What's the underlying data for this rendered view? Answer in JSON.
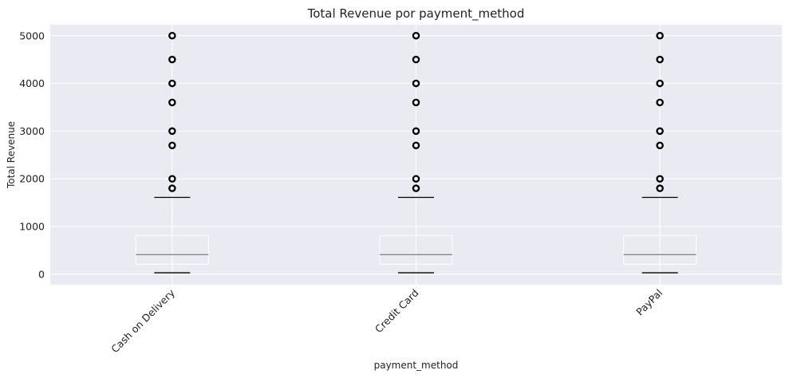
{
  "chart_data": {
    "type": "box",
    "title": "Total Revenue por payment_method",
    "xlabel": "payment_method",
    "ylabel": "Total Revenue",
    "categories": [
      "Cash on Delivery",
      "Credit Card",
      "PayPal"
    ],
    "ylim": [
      -220,
      5230
    ],
    "yticks": [
      0,
      1000,
      2000,
      3000,
      4000,
      5000
    ],
    "grid": true,
    "boxes": [
      {
        "category": "Cash on Delivery",
        "whisker_low": 30,
        "q1": 210,
        "median": 410,
        "q3": 810,
        "whisker_high": 1610,
        "fliers": [
          1800,
          2000,
          2700,
          3000,
          3600,
          4000,
          4500,
          5000
        ]
      },
      {
        "category": "Credit Card",
        "whisker_low": 30,
        "q1": 210,
        "median": 410,
        "q3": 810,
        "whisker_high": 1610,
        "fliers": [
          1800,
          2000,
          2700,
          3000,
          3600,
          4000,
          4500,
          5000
        ]
      },
      {
        "category": "PayPal",
        "whisker_low": 30,
        "q1": 210,
        "median": 410,
        "q3": 810,
        "whisker_high": 1610,
        "fliers": [
          1800,
          2000,
          2700,
          3000,
          3600,
          4000,
          4500,
          5000
        ]
      }
    ],
    "colors": {
      "plot_background": "#eaeaf2",
      "grid": "#ffffff",
      "median": "#888888",
      "whisker_cap": "#000000",
      "flier": "#000000"
    }
  }
}
